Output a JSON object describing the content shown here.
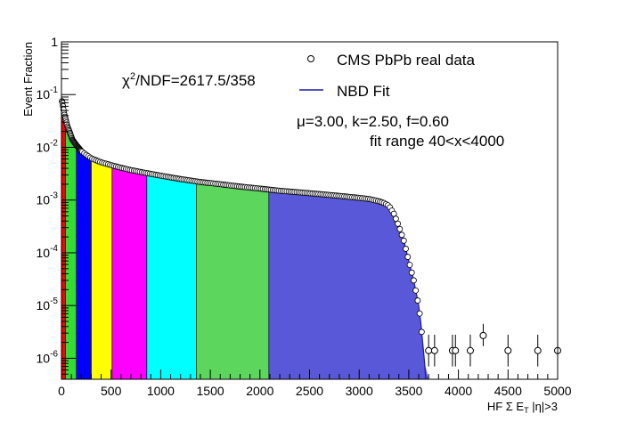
{
  "chart_data": {
    "type": "area",
    "xlabel": "HF Σ E",
    "xlabel_sub": "T",
    "xlabel_suffix": " |η|>3",
    "ylabel": "Event Fraction",
    "xlim": [
      0,
      5000
    ],
    "ylim": [
      4e-07,
      1
    ],
    "yscale": "log",
    "grid": false,
    "legend_position": "top-right",
    "x_ticks": [
      "0",
      "500",
      "1000",
      "1500",
      "2000",
      "2500",
      "3000",
      "3500",
      "4000",
      "4500",
      "5000"
    ],
    "y_ticks": [
      {
        "base": "10",
        "exp": "-6",
        "value": 1e-06
      },
      {
        "base": "10",
        "exp": "-5",
        "value": 1e-05
      },
      {
        "base": "10",
        "exp": "-4",
        "value": 0.0001
      },
      {
        "base": "10",
        "exp": "-3",
        "value": 0.001
      },
      {
        "base": "10",
        "exp": "-2",
        "value": 0.01
      },
      {
        "base": "10",
        "exp": "-1",
        "value": 0.1
      },
      {
        "base": "1",
        "exp": "",
        "value": 1
      }
    ],
    "series": [
      {
        "name": "CMS PbPb real data",
        "marker": "open-circle"
      },
      {
        "name": "NBD Fit",
        "line_color": "#1a1aa8"
      }
    ],
    "annotations": {
      "chi2_symbol": "χ",
      "chi2_exp": "2",
      "chi2_text": "/NDF=2617.5/358",
      "params": "μ=3.00, k=2.50, f=0.60",
      "fit_range": "fit range 40<x<4000"
    },
    "curve": [
      [
        0,
        0.08
      ],
      [
        10,
        0.07
      ],
      [
        25,
        0.045
      ],
      [
        40,
        0.035
      ],
      [
        60,
        0.025
      ],
      [
        80,
        0.02
      ],
      [
        110,
        0.014
      ],
      [
        150,
        0.011
      ],
      [
        200,
        0.0085
      ],
      [
        250,
        0.0072
      ],
      [
        300,
        0.0062
      ],
      [
        400,
        0.0052
      ],
      [
        500,
        0.0046
      ],
      [
        600,
        0.0041
      ],
      [
        700,
        0.0037
      ],
      [
        800,
        0.0034
      ],
      [
        1000,
        0.0029
      ],
      [
        1200,
        0.0025
      ],
      [
        1400,
        0.0022
      ],
      [
        1600,
        0.002
      ],
      [
        1800,
        0.0018
      ],
      [
        2000,
        0.00165
      ],
      [
        2200,
        0.0015
      ],
      [
        2400,
        0.0014
      ],
      [
        2600,
        0.0013
      ],
      [
        2800,
        0.0012
      ],
      [
        3000,
        0.0011
      ],
      [
        3100,
        0.00105
      ],
      [
        3200,
        0.00095
      ],
      [
        3250,
        0.00088
      ],
      [
        3300,
        0.00078
      ],
      [
        3350,
        0.00055
      ],
      [
        3400,
        0.00032
      ],
      [
        3450,
        0.00017
      ],
      [
        3500,
        7e-05
      ],
      [
        3550,
        3e-05
      ],
      [
        3600,
        1e-05
      ],
      [
        3620,
        5e-06
      ],
      [
        3640,
        2e-06
      ],
      [
        3660,
        8e-07
      ],
      [
        3670,
        4e-07
      ]
    ],
    "bands": [
      {
        "from": 0,
        "to": 40,
        "color": "#ff0000"
      },
      {
        "from": 40,
        "to": 150,
        "color": "#33dd33"
      },
      {
        "from": 150,
        "to": 300,
        "color": "#0000ff"
      },
      {
        "from": 300,
        "to": 510,
        "color": "#ffff00"
      },
      {
        "from": 510,
        "to": 860,
        "color": "#ff00ff"
      },
      {
        "from": 860,
        "to": 1360,
        "color": "#00ffff"
      },
      {
        "from": 1360,
        "to": 2090,
        "color": "#5cd65c"
      },
      {
        "from": 2090,
        "to": 3700,
        "color": "#5858d8"
      }
    ],
    "outliers": [
      {
        "x": 3700,
        "y": 1.4e-06,
        "err": [
          7e-07,
          2.8e-06
        ]
      },
      {
        "x": 3760,
        "y": 1.4e-06,
        "err": [
          7e-07,
          2.8e-06
        ]
      },
      {
        "x": 3940,
        "y": 1.4e-06,
        "err": [
          7e-07,
          2.8e-06
        ]
      },
      {
        "x": 3970,
        "y": 1.4e-06,
        "err": [
          7e-07,
          2.8e-06
        ]
      },
      {
        "x": 4120,
        "y": 1.4e-06,
        "err": [
          7e-07,
          2.8e-06
        ]
      },
      {
        "x": 4250,
        "y": 2.7e-06,
        "err": [
          1.7e-06,
          4.5e-06
        ]
      },
      {
        "x": 4500,
        "y": 1.4e-06,
        "err": [
          7e-07,
          2.8e-06
        ]
      },
      {
        "x": 4800,
        "y": 1.4e-06,
        "err": [
          7e-07,
          2.8e-06
        ]
      },
      {
        "x": 5000,
        "y": 1.4e-06,
        "err": [
          7e-07,
          2.8e-06
        ]
      }
    ]
  }
}
